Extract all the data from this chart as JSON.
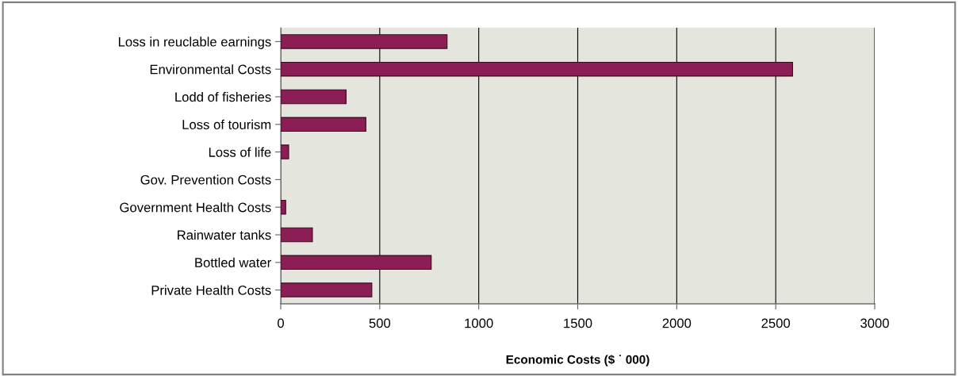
{
  "chart_data": {
    "type": "bar",
    "orientation": "horizontal",
    "xlabel": "Economic Costs ($ ˙ 000)",
    "categories": [
      "Loss in reuclable earnings",
      "Environmental Costs",
      "Lodd of fisheries",
      "Loss of tourism",
      "Loss of life",
      "Gov. Prevention Costs",
      "Government Health Costs",
      "Rainwater tanks",
      "Bottled water",
      "Private Health Costs"
    ],
    "values": [
      840,
      2585,
      330,
      430,
      40,
      0,
      25,
      160,
      760,
      460
    ],
    "color": "#8b1e55",
    "xlim": [
      0,
      3000
    ],
    "xticks": [
      0,
      500,
      1000,
      1500,
      2000,
      2500,
      3000
    ],
    "grid": "x",
    "legend": false
  }
}
